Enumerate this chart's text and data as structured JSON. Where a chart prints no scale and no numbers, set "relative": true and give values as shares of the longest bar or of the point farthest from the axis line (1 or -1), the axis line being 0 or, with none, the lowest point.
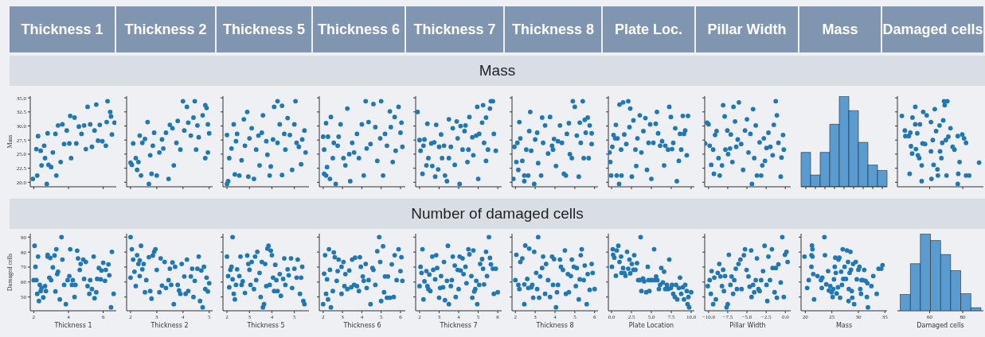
{
  "chart_data": [
    {
      "type": "other",
      "annotations": [
        "Thickness 1",
        "Thickness 2",
        "Thickness 5",
        "Thickness 6",
        "Thickness 7",
        "Thickness 8",
        "Plate Loc.",
        "Pillar Width",
        "Mass",
        "Damaged cells"
      ]
    },
    {
      "type": "other",
      "title": "Mass"
    },
    {
      "type": "scatter",
      "color": "#1f77b4",
      "marker": "circle",
      "ylabel": "Mass",
      "tick_labels": "y",
      "xlim": [
        1.8,
        6.75
      ],
      "xticks": [
        2,
        4,
        6
      ],
      "ylim": [
        19.2,
        35.3
      ],
      "yticks": [
        {
          "value": 20,
          "label": "20.0"
        },
        {
          "value": 22.5,
          "label": "22.5"
        },
        {
          "value": 25,
          "label": "25.0"
        },
        {
          "value": 27.5,
          "label": "27.5"
        },
        {
          "value": 30,
          "label": "30.0"
        },
        {
          "value": 32.5,
          "label": "32.5"
        },
        {
          "value": 35,
          "label": "35.0"
        }
      ],
      "x": [
        1.95,
        2.2,
        2.15,
        2.25,
        2.4,
        2.45,
        2.6,
        2.65,
        2.75,
        2.8,
        2.85,
        3.0,
        3.1,
        3.25,
        3.3,
        3.4,
        3.55,
        3.65,
        3.75,
        3.9,
        4.05,
        4.1,
        4.15,
        4.35,
        4.45,
        4.6,
        4.75,
        4.9,
        5.0,
        5.1,
        5.25,
        5.35,
        5.5,
        5.6,
        5.7,
        5.8,
        5.95,
        6.15,
        6.2,
        6.25,
        6.4,
        6.45,
        6.5,
        6.65
      ],
      "values": [
        20.6,
        21.2,
        25.9,
        28.2,
        25.6,
        23.0,
        26.5,
        24.3,
        19.7,
        28.7,
        23.1,
        22.7,
        25.3,
        28.6,
        21.2,
        30.1,
        23.6,
        30.3,
        26.8,
        29.2,
        26.9,
        31.8,
        24.3,
        31.5,
        26.9,
        29.9,
        28.6,
        30.1,
        25.9,
        33.4,
        30.3,
        26.3,
        29.2,
        33.8,
        27.4,
        30.2,
        27.3,
        26.5,
        30.7,
        34.4,
        32.5,
        31.7,
        28.5,
        30.6
      ]
    },
    {
      "type": "scatter",
      "color": "#1f77b4",
      "marker": "circle",
      "tick_labels": false,
      "xlim": [
        1.85,
        5.13
      ],
      "xticks": [
        2,
        3,
        4,
        5
      ],
      "ylim": [
        19.2,
        35.3
      ],
      "yticks": [
        20,
        22.5,
        25,
        27.5,
        30,
        32.5,
        35
      ],
      "x": [
        2.0,
        2.05,
        2.1,
        2.2,
        2.25,
        2.3,
        2.35,
        2.4,
        2.45,
        2.55,
        2.65,
        2.7,
        2.75,
        2.8,
        2.85,
        2.9,
        3.0,
        3.1,
        3.2,
        3.25,
        3.35,
        3.45,
        3.5,
        3.6,
        3.65,
        3.75,
        3.8,
        3.9,
        4.0,
        4.05,
        4.15,
        4.2,
        4.3,
        4.4,
        4.45,
        4.5,
        4.55,
        4.6,
        4.75,
        4.85,
        4.85,
        4.9,
        4.95,
        5.0,
        4.95
      ],
      "values": [
        23.5,
        23.1,
        26.9,
        24.3,
        22.2,
        23.6,
        28.3,
        21.2,
        27.0,
        27.7,
        30.7,
        19.7,
        24.8,
        21.5,
        26.5,
        28.8,
        21.2,
        25.3,
        27.6,
        26.0,
        28.8,
        20.6,
        30.2,
        29.6,
        23.0,
        27.0,
        30.9,
        25.8,
        34.4,
        29.2,
        33.4,
        30.6,
        28.3,
        31.5,
        34.4,
        25.8,
        30.1,
        28.0,
        31.9,
        33.7,
        24.3,
        33.2,
        30.3,
        28.7,
        25.3
      ]
    },
    {
      "type": "scatter",
      "color": "#1f77b4",
      "marker": "circle",
      "tick_labels": false,
      "xlim": [
        1.82,
        5.65
      ],
      "xticks": [
        2,
        3,
        4,
        5
      ],
      "ylim": [
        19.2,
        35.3
      ],
      "yticks": [
        20,
        22.5,
        25,
        27.5,
        30,
        32.5,
        35
      ],
      "x": [
        2.0,
        2.05,
        2.0,
        2.1,
        2.2,
        2.3,
        2.35,
        2.4,
        2.45,
        2.55,
        2.65,
        2.75,
        2.8,
        2.9,
        2.95,
        3.0,
        3.1,
        3.2,
        3.3,
        3.4,
        3.45,
        3.55,
        3.6,
        3.75,
        3.8,
        3.9,
        3.95,
        4.05,
        4.1,
        4.25,
        4.25,
        4.35,
        4.45,
        4.45,
        4.55,
        4.6,
        4.7,
        4.8,
        4.9,
        5.0,
        5.05,
        5.1,
        5.2,
        5.3,
        5.35,
        5.45,
        5.5
      ],
      "values": [
        19.7,
        20.2,
        28.4,
        24.3,
        26.0,
        30.3,
        21.4,
        27.3,
        28.6,
        21.2,
        23.9,
        31.2,
        26.5,
        32.5,
        21.0,
        27.8,
        29.6,
        20.6,
        25.8,
        28.3,
        23.0,
        28.8,
        31.9,
        27.3,
        24.9,
        21.2,
        22.8,
        27.6,
        33.4,
        34.4,
        27.0,
        30.3,
        21.3,
        33.6,
        28.6,
        25.8,
        31.4,
        28.4,
        22.2,
        30.3,
        34.4,
        27.0,
        26.3,
        23.2,
        27.6,
        29.2,
        25.3
      ]
    },
    {
      "type": "scatter",
      "color": "#1f77b4",
      "marker": "circle",
      "tick_labels": false,
      "xlim": [
        1.8,
        6.25
      ],
      "xticks": [
        2,
        3,
        4,
        5,
        6
      ],
      "ylim": [
        19.2,
        35.3
      ],
      "yticks": [
        20,
        22.5,
        25,
        27.5,
        30,
        32.5,
        35
      ],
      "x": [
        2.0,
        2.05,
        2.05,
        2.15,
        2.15,
        2.2,
        2.25,
        2.35,
        2.4,
        2.5,
        2.55,
        2.65,
        2.75,
        2.8,
        2.9,
        3.05,
        3.15,
        3.25,
        3.35,
        3.4,
        3.5,
        3.6,
        3.75,
        3.85,
        4.0,
        4.1,
        4.2,
        4.25,
        4.35,
        4.45,
        4.6,
        4.7,
        4.8,
        4.95,
        5.0,
        5.1,
        5.2,
        5.3,
        5.45,
        5.5,
        5.6,
        5.7,
        5.75,
        5.9,
        6.0,
        6.05,
        6.1
      ],
      "values": [
        28.1,
        25.8,
        21.5,
        21.2,
        30.5,
        22.7,
        28.1,
        20.6,
        31.6,
        24.3,
        27.0,
        19.7,
        26.5,
        28.1,
        30.3,
        24.3,
        23.0,
        33.1,
        25.0,
        20.2,
        27.0,
        25.3,
        28.6,
        24.3,
        30.3,
        21.2,
        34.4,
        26.0,
        30.7,
        26.8,
        33.9,
        29.8,
        23.8,
        27.8,
        34.4,
        21.2,
        28.6,
        26.5,
        32.6,
        29.8,
        23.6,
        31.6,
        25.6,
        33.4,
        28.8,
        30.6,
        26.3
      ]
    },
    {
      "type": "scatter",
      "color": "#1f77b4",
      "marker": "circle",
      "tick_labels": false,
      "xlim": [
        1.8,
        6.2
      ],
      "xticks": [
        2,
        3,
        4,
        5,
        6
      ],
      "ylim": [
        19.2,
        35.3
      ],
      "yticks": [
        20,
        22.5,
        25,
        27.5,
        30,
        32.5,
        35
      ],
      "x": [
        1.9,
        2.0,
        2.05,
        2.15,
        2.2,
        2.25,
        2.35,
        2.4,
        2.45,
        2.6,
        2.65,
        2.75,
        2.8,
        2.85,
        2.95,
        3.0,
        3.1,
        3.15,
        3.25,
        3.3,
        3.4,
        3.5,
        3.5,
        3.6,
        3.7,
        3.8,
        3.9,
        3.95,
        4.05,
        4.1,
        4.2,
        4.3,
        4.35,
        4.45,
        4.5,
        4.55,
        4.7,
        4.75,
        4.9,
        4.95,
        5.0,
        5.05,
        5.2,
        5.25,
        5.3,
        5.4,
        5.4,
        5.5,
        5.6,
        5.65,
        5.75,
        5.8,
        5.9
      ],
      "values": [
        32.5,
        27.5,
        25.6,
        21.5,
        26.5,
        27.6,
        23.0,
        30.4,
        24.3,
        26.9,
        22.9,
        27.1,
        21.0,
        30.2,
        22.3,
        26.3,
        28.5,
        24.3,
        26.5,
        21.2,
        20.2,
        24.3,
        31.2,
        26.3,
        29.6,
        23.1,
        30.8,
        27.8,
        19.7,
        30.0,
        25.8,
        29.1,
        30.1,
        23.6,
        25.8,
        31.6,
        28.0,
        24.8,
        28.3,
        33.4,
        20.6,
        28.6,
        30.6,
        33.7,
        27.0,
        23.8,
        31.5,
        25.8,
        33.1,
        34.4,
        34.4,
        28.6,
        25.6
      ]
    },
    {
      "type": "scatter",
      "color": "#1f77b4",
      "marker": "circle",
      "tick_labels": false,
      "xlim": [
        1.83,
        6.17
      ],
      "xticks": [
        2,
        3,
        4,
        5,
        6
      ],
      "ylim": [
        19.2,
        35.3
      ],
      "yticks": [
        20,
        22.5,
        25,
        27.5,
        30,
        32.5,
        35
      ],
      "x": [
        1.9,
        1.95,
        2.05,
        2.1,
        2.15,
        2.2,
        2.25,
        2.35,
        2.45,
        2.45,
        2.55,
        2.65,
        2.7,
        2.75,
        2.8,
        2.95,
        3.0,
        3.1,
        3.15,
        3.3,
        3.35,
        3.4,
        3.5,
        3.65,
        3.75,
        3.85,
        3.9,
        3.95,
        4.05,
        4.15,
        4.25,
        4.35,
        4.45,
        4.55,
        4.6,
        4.7,
        4.75,
        4.85,
        4.9,
        5.0,
        5.1,
        5.2,
        5.25,
        5.3,
        5.4,
        5.45,
        5.5,
        5.55,
        5.65,
        5.7,
        5.75,
        5.85,
        5.85
      ],
      "values": [
        20.6,
        26.3,
        23.6,
        27.0,
        22.2,
        30.7,
        27.8,
        23.8,
        21.2,
        20.2,
        25.8,
        21.2,
        29.1,
        32.5,
        25.6,
        19.7,
        27.6,
        28.8,
        23.4,
        21.2,
        31.5,
        27.0,
        30.1,
        25.1,
        31.6,
        26.5,
        25.8,
        27.7,
        22.9,
        27.3,
        30.1,
        27.0,
        21.5,
        21.2,
        28.6,
        30.5,
        25.0,
        24.3,
        34.4,
        33.4,
        28.3,
        21.0,
        30.6,
        27.0,
        34.4,
        24.3,
        31.1,
        28.8,
        31.5,
        24.3,
        30.1,
        26.8,
        28.7
      ]
    },
    {
      "type": "scatter",
      "color": "#1f77b4",
      "marker": "circle",
      "tick_labels": false,
      "xlim": [
        -0.4,
        10.4
      ],
      "xticks": [
        0,
        2.5,
        5,
        7.5,
        10
      ],
      "ylim": [
        19.2,
        35.3
      ],
      "yticks": [
        20,
        22.5,
        25,
        27.5,
        30,
        32.5,
        35
      ],
      "x": [
        -0.25,
        -0.15,
        -0.05,
        0.1,
        0.25,
        0.45,
        0.55,
        0.65,
        0.75,
        0.95,
        1.0,
        1.2,
        1.25,
        1.45,
        1.6,
        1.85,
        2.1,
        2.25,
        2.35,
        2.55,
        2.75,
        3.0,
        3.1,
        3.25,
        3.55,
        3.75,
        4.0,
        4.25,
        4.45,
        4.65,
        4.85,
        5.0,
        5.25,
        5.55,
        5.7,
        5.85,
        6.1,
        6.35,
        6.6,
        6.75,
        7.1,
        7.25,
        7.45,
        7.6,
        7.75,
        8.0,
        8.2,
        8.45,
        8.6,
        8.75,
        8.95,
        9.1,
        9.25,
        9.45,
        9.6
      ],
      "values": [
        25.3,
        23.6,
        21.2,
        26.3,
        28.4,
        27.8,
        30.2,
        21.2,
        27.8,
        19.7,
        33.8,
        25.8,
        21.2,
        34.2,
        28.5,
        26.8,
        34.4,
        29.8,
        33.1,
        21.0,
        31.0,
        25.8,
        22.9,
        27.8,
        31.9,
        25.3,
        29.1,
        31.4,
        22.2,
        27.0,
        30.3,
        20.6,
        27.0,
        30.4,
        32.5,
        28.7,
        26.5,
        27.3,
        23.0,
        26.5,
        25.8,
        33.4,
        31.6,
        25.9,
        27.0,
        29.6,
        20.2,
        23.8,
        28.6,
        25.8,
        31.8,
        28.6,
        29.2,
        24.8,
        31.8
      ]
    },
    {
      "type": "scatter",
      "color": "#1f77b4",
      "marker": "circle",
      "tick_labels": false,
      "xlim": [
        -10.5,
        0.7
      ],
      "xticks": [
        -10,
        -7.5,
        -5,
        -2.5,
        0
      ],
      "ylim": [
        19.2,
        35.3
      ],
      "yticks": [
        20,
        22.5,
        25,
        27.5,
        30,
        32.5,
        35
      ],
      "x": [
        -10.45,
        -10.2,
        -10.0,
        -9.85,
        -9.65,
        -9.4,
        -9.3,
        -9.15,
        -8.95,
        -8.7,
        -8.55,
        -8.25,
        -8.1,
        -7.9,
        -7.8,
        -7.55,
        -7.45,
        -7.2,
        -7.1,
        -6.9,
        -6.75,
        -6.55,
        -6.4,
        -6.2,
        -6.05,
        -5.75,
        -5.5,
        -5.25,
        -5.0,
        -4.8,
        -4.55,
        -4.35,
        -4.2,
        -4.05,
        -3.85,
        -3.7,
        -3.35,
        -3.15,
        -3.0,
        -2.8,
        -2.65,
        -2.45,
        -2.2,
        -1.95,
        -1.65,
        -1.5,
        -1.25,
        -1.1,
        -0.9,
        -0.6,
        -0.5,
        -0.3,
        -0.2
      ],
      "values": [
        26.9,
        30.6,
        30.3,
        26.5,
        23.1,
        25.8,
        21.5,
        28.4,
        29.1,
        24.3,
        21.2,
        23.0,
        33.7,
        31.7,
        25.8,
        29.2,
        25.0,
        26.0,
        28.5,
        23.6,
        33.4,
        30.8,
        26.3,
        27.6,
        34.2,
        26.8,
        22.2,
        29.2,
        31.2,
        25.3,
        28.6,
        19.7,
        33.0,
        24.3,
        30.1,
        21.2,
        27.1,
        21.2,
        23.0,
        27.8,
        23.8,
        26.1,
        28.8,
        26.3,
        24.8,
        30.2,
        34.4,
        31.9,
        27.0,
        21.0,
        24.4,
        28.4,
        25.8
      ]
    },
    {
      "type": "bar",
      "color": "#5a9bd0",
      "relative": true,
      "tick_labels": false,
      "categories": [
        null,
        null,
        null,
        null,
        null,
        null,
        null,
        null,
        null
      ],
      "values": [
        0.38,
        0.13,
        0.38,
        0.69,
        1,
        0.84,
        0.49,
        0.24,
        0.18
      ]
    },
    {
      "type": "scatter",
      "color": "#1f77b4",
      "marker": "circle",
      "tick_labels": false,
      "xlim": [
        40.5,
        92.5
      ],
      "xticks": [
        60,
        80
      ],
      "ylim": [
        19.2,
        35.3
      ],
      "yticks": [
        20,
        22.5,
        25,
        27.5,
        30,
        32.5,
        35
      ],
      "x": [
        43.2,
        45.0,
        45.3,
        47.4,
        47.9,
        48.3,
        48.7,
        49.4,
        49.6,
        51.3,
        51.3,
        51.7,
        52.5,
        52.9,
        53.7,
        54.1,
        55.2,
        55.2,
        55.7,
        56.1,
        57.2,
        58.2,
        60.8,
        60.8,
        61.1,
        61.9,
        62.4,
        63.1,
        63.9,
        64.7,
        65.0,
        66.0,
        66.3,
        67.1,
        67.6,
        68.2,
        68.7,
        69.1,
        69.8,
        70.2,
        70.7,
        71.3,
        72.6,
        73.9,
        75.0,
        77.0,
        77.0,
        77.3,
        78.1,
        79.7,
        80.8,
        82.0,
        82.0,
        83.9,
        89.9
      ],
      "values": [
        31.8,
        29.2,
        28.2,
        28.2,
        21.5,
        28.8,
        26.4,
        25.1,
        31.5,
        33.4,
        30.3,
        25.9,
        28.7,
        24.8,
        24.3,
        30.3,
        23.0,
        20.2,
        26.9,
        32.5,
        26.8,
        31.9,
        30.7,
        25.5,
        20.6,
        27.5,
        23.1,
        33.0,
        29.1,
        22.3,
        21.2,
        30.1,
        25.5,
        24.3,
        27.0,
        31.0,
        34.4,
        33.7,
        27.5,
        21.2,
        34.4,
        28.1,
        29.6,
        26.3,
        25.8,
        28.2,
        19.7,
        21.5,
        23.6,
        28.5,
        27.8,
        27.0,
        21.2,
        21.2,
        23.5
      ]
    },
    {
      "type": "other",
      "title": "Number of damaged cells"
    },
    {
      "type": "scatter",
      "color": "#1f77b4",
      "marker": "circle",
      "xlabel": "Thickness 1",
      "ylabel": "Damaged cells",
      "xlim": [
        1.8,
        6.75
      ],
      "xticks": [
        2,
        4,
        6
      ],
      "ylim": [
        40.8,
        92.3
      ],
      "yticks": [
        50,
        60,
        70,
        80,
        90
      ],
      "x": [
        2.05,
        2.1,
        2.0,
        2.15,
        2.2,
        2.25,
        2.3,
        2.35,
        2.4,
        2.45,
        2.55,
        2.65,
        2.7,
        2.8,
        2.8,
        2.9,
        2.95,
        3.0,
        3.1,
        3.2,
        3.25,
        3.3,
        3.35,
        3.4,
        3.5,
        3.6,
        3.65,
        3.75,
        3.85,
        3.95,
        4.05,
        4.1,
        4.2,
        4.25,
        4.35,
        4.4,
        4.5,
        4.55,
        4.65,
        4.7,
        4.85,
        4.9,
        5.0,
        5.1,
        5.2,
        5.25,
        5.35,
        5.45,
        5.5,
        5.6,
        5.65,
        5.75,
        5.85,
        5.9,
        6.0,
        6.1,
        6.15,
        6.3,
        6.35,
        6.45,
        6.5,
        6.6
      ],
      "values": [
        84.2,
        70.2,
        61.3,
        61.3,
        52.1,
        77.0,
        47.3,
        58.1,
        54.0,
        56.0,
        49.7,
        57.3,
        54.0,
        77.0,
        78.2,
        62.9,
        76.1,
        61.3,
        69.8,
        77.7,
        53.7,
        81.9,
        65.3,
        66.9,
        48.4,
        90.0,
        75.0,
        58.1,
        45.2,
        61.3,
        64.0,
        81.9,
        58.1,
        61.3,
        50.0,
        58.1,
        81.0,
        75.8,
        68.1,
        72.1,
        75.0,
        62.1,
        73.4,
        57.3,
        52.1,
        61.3,
        55.3,
        77.0,
        49.2,
        53.2,
        62.1,
        69.4,
        61.8,
        67.7,
        72.9,
        60.8,
        68.1,
        71.8,
        64.5,
        43.1,
        80.2,
        52.1
      ]
    },
    {
      "type": "scatter",
      "color": "#1f77b4",
      "marker": "circle",
      "xlabel": "Thickness 2",
      "tick_labels": "x",
      "xlim": [
        1.85,
        5.13
      ],
      "xticks": [
        2,
        3,
        4,
        5
      ],
      "ylim": [
        40.8,
        92.3
      ],
      "yticks": [
        50,
        60,
        70,
        80,
        90
      ],
      "x": [
        2.0,
        2.0,
        2.05,
        2.1,
        2.15,
        2.2,
        2.25,
        2.3,
        2.35,
        2.35,
        2.4,
        2.45,
        2.5,
        2.55,
        2.6,
        2.7,
        2.75,
        2.8,
        2.85,
        2.9,
        2.95,
        3.0,
        3.1,
        3.15,
        3.2,
        3.3,
        3.35,
        3.45,
        3.5,
        3.55,
        3.6,
        3.65,
        3.7,
        3.8,
        3.85,
        3.9,
        3.95,
        4.05,
        4.1,
        4.15,
        4.2,
        4.3,
        4.35,
        4.4,
        4.45,
        4.55,
        4.6,
        4.65,
        4.7,
        4.75,
        4.8,
        4.85,
        4.9,
        4.95,
        5.0
      ],
      "values": [
        90.0,
        62.9,
        81.9,
        75.0,
        66.9,
        57.3,
        77.9,
        72.1,
        74.5,
        64.0,
        84.2,
        68.5,
        72.1,
        53.2,
        61.3,
        76.6,
        54.0,
        48.9,
        77.7,
        80.2,
        81.9,
        68.1,
        53.2,
        75.8,
        57.6,
        73.4,
        56.0,
        61.3,
        68.9,
        58.1,
        73.1,
        45.2,
        70.2,
        58.1,
        54.4,
        52.1,
        72.1,
        63.7,
        52.1,
        75.0,
        54.0,
        63.7,
        68.9,
        50.0,
        60.8,
        68.9,
        77.0,
        47.3,
        67.7,
        43.1,
        70.2,
        55.3,
        62.9,
        53.7,
        59.2
      ]
    },
    {
      "type": "scatter",
      "color": "#1f77b4",
      "marker": "circle",
      "xlabel": "Thickness 5",
      "tick_labels": "x",
      "xlim": [
        1.82,
        5.65
      ],
      "xticks": [
        2,
        3,
        4,
        5
      ],
      "ylim": [
        40.8,
        92.3
      ],
      "yticks": [
        50,
        60,
        70,
        80,
        90
      ],
      "x": [
        2.0,
        2.05,
        2.1,
        2.15,
        2.2,
        2.25,
        2.25,
        2.3,
        2.35,
        2.4,
        2.45,
        2.55,
        2.6,
        2.65,
        2.7,
        2.8,
        2.9,
        2.95,
        3.0,
        3.05,
        3.1,
        3.2,
        3.25,
        3.3,
        3.35,
        3.45,
        3.5,
        3.55,
        3.6,
        3.65,
        3.7,
        3.75,
        3.8,
        3.85,
        3.9,
        3.95,
        4.0,
        4.05,
        4.1,
        4.15,
        4.2,
        4.25,
        4.35,
        4.4,
        4.5,
        4.55,
        4.6,
        4.7,
        4.75,
        4.85,
        4.9,
        5.0,
        5.1,
        5.15,
        5.25,
        5.3,
        5.35,
        5.4,
        5.45
      ],
      "values": [
        77.0,
        64.0,
        56.5,
        68.2,
        70.2,
        61.8,
        90.0,
        52.1,
        48.4,
        58.1,
        68.5,
        64.0,
        77.0,
        58.1,
        60.5,
        52.7,
        77.7,
        72.1,
        68.2,
        58.1,
        73.4,
        55.3,
        77.0,
        61.3,
        80.2,
        66.1,
        50.0,
        73.4,
        43.1,
        45.2,
        72.1,
        57.3,
        82.3,
        84.2,
        58.1,
        81.0,
        77.9,
        62.9,
        54.0,
        71.5,
        61.3,
        54.0,
        65.3,
        50.8,
        62.1,
        75.8,
        58.1,
        68.5,
        64.5,
        75.8,
        56.0,
        68.9,
        62.9,
        75.0,
        52.1,
        62.9,
        70.2,
        47.3,
        45.2
      ]
    },
    {
      "type": "scatter",
      "color": "#1f77b4",
      "marker": "circle",
      "xlabel": "Thickness 6",
      "tick_labels": "x",
      "xlim": [
        1.8,
        6.25
      ],
      "xticks": [
        2,
        3,
        4,
        5,
        6
      ],
      "ylim": [
        40.8,
        92.3
      ],
      "yticks": [
        50,
        60,
        70,
        80,
        90
      ],
      "x": [
        2.0,
        2.05,
        2.1,
        2.15,
        2.2,
        2.25,
        2.3,
        2.35,
        2.4,
        2.5,
        2.55,
        2.6,
        2.7,
        2.75,
        2.8,
        2.95,
        2.95,
        3.05,
        3.1,
        3.15,
        3.25,
        3.35,
        3.45,
        3.5,
        3.6,
        3.65,
        3.75,
        3.85,
        3.9,
        3.95,
        4.05,
        4.1,
        4.2,
        4.25,
        4.35,
        4.45,
        4.55,
        4.6,
        4.7,
        4.8,
        4.9,
        4.95,
        5.0,
        5.1,
        5.15,
        5.2,
        5.3,
        5.35,
        5.45,
        5.55,
        5.65,
        5.7,
        5.8,
        5.9,
        6.0,
        6.05,
        6.1
      ],
      "values": [
        45.2,
        65.6,
        77.9,
        52.1,
        61.8,
        48.4,
        81.9,
        68.2,
        43.1,
        54.0,
        79.8,
        76.6,
        60.8,
        67.3,
        75.0,
        70.2,
        52.1,
        73.4,
        57.3,
        65.3,
        55.3,
        67.7,
        56.5,
        75.0,
        58.1,
        76.3,
        57.3,
        54.0,
        76.6,
        70.2,
        63.7,
        60.8,
        72.1,
        56.0,
        61.3,
        45.2,
        69.4,
        68.1,
        58.1,
        80.6,
        90.0,
        73.4,
        47.3,
        83.9,
        53.2,
        63.7,
        49.5,
        63.7,
        49.5,
        71.8,
        50.0,
        77.9,
        61.3,
        81.9,
        67.3,
        76.6,
        60.8
      ]
    },
    {
      "type": "scatter",
      "color": "#1f77b4",
      "marker": "circle",
      "xlabel": "Thickness 7",
      "tick_labels": "x",
      "xlim": [
        1.8,
        6.2
      ],
      "xticks": [
        2,
        3,
        4,
        5,
        6
      ],
      "ylim": [
        40.8,
        92.3
      ],
      "yticks": [
        50,
        60,
        70,
        80,
        90
      ],
      "x": [
        2.0,
        2.05,
        2.1,
        2.15,
        2.2,
        2.25,
        2.35,
        2.4,
        2.45,
        2.5,
        2.55,
        2.65,
        2.7,
        2.8,
        2.85,
        2.9,
        3.0,
        3.05,
        3.1,
        3.2,
        3.25,
        3.3,
        3.4,
        3.45,
        3.5,
        3.6,
        3.65,
        3.7,
        3.8,
        3.85,
        3.95,
        4.0,
        4.05,
        4.1,
        4.2,
        4.25,
        4.35,
        4.4,
        4.5,
        4.55,
        4.65,
        4.7,
        4.75,
        4.8,
        4.85,
        4.9,
        4.95,
        5.05,
        5.1,
        5.2,
        5.25,
        5.3,
        5.4,
        5.45,
        5.55,
        5.6,
        5.65,
        5.75,
        5.8,
        5.9,
        6.0
      ],
      "values": [
        57.3,
        70.2,
        66.1,
        81.9,
        48.4,
        60.5,
        67.3,
        57.3,
        55.3,
        65.0,
        54.0,
        77.0,
        68.2,
        61.8,
        77.9,
        69.4,
        49.5,
        56.0,
        64.0,
        56.5,
        73.4,
        47.9,
        60.8,
        84.2,
        45.2,
        57.3,
        61.3,
        77.0,
        71.0,
        50.0,
        68.1,
        55.3,
        77.0,
        67.7,
        75.8,
        65.3,
        70.2,
        59.2,
        81.9,
        78.5,
        64.0,
        49.5,
        81.1,
        53.7,
        55.3,
        60.8,
        45.2,
        58.1,
        72.1,
        75.3,
        68.9,
        58.4,
        80.2,
        64.0,
        90.0,
        76.1,
        71.8,
        68.9,
        52.1,
        68.9,
        53.2
      ]
    },
    {
      "type": "scatter",
      "color": "#1f77b4",
      "marker": "circle",
      "xlabel": "Thickness 8",
      "tick_labels": "x",
      "xlim": [
        1.83,
        6.17
      ],
      "xticks": [
        2,
        3,
        4,
        5,
        6
      ],
      "ylim": [
        40.8,
        92.3
      ],
      "yticks": [
        50,
        60,
        70,
        80,
        90
      ],
      "x": [
        2.0,
        2.05,
        2.15,
        2.2,
        2.25,
        2.35,
        2.45,
        2.45,
        2.5,
        2.6,
        2.65,
        2.7,
        2.8,
        2.85,
        2.9,
        2.95,
        3.05,
        3.1,
        3.15,
        3.2,
        3.25,
        3.35,
        3.4,
        3.5,
        3.55,
        3.65,
        3.75,
        3.85,
        3.9,
        3.95,
        4.05,
        4.1,
        4.15,
        4.25,
        4.3,
        4.4,
        4.5,
        4.55,
        4.65,
        4.7,
        4.8,
        4.85,
        4.95,
        5.05,
        5.1,
        5.2,
        5.25,
        5.3,
        5.35,
        5.45,
        5.5,
        5.6,
        5.65,
        5.75,
        5.85,
        5.9,
        6.0
      ],
      "values": [
        61.3,
        78.2,
        58.1,
        55.3,
        73.4,
        75.8,
        58.4,
        45.2,
        84.4,
        62.1,
        56.0,
        82.3,
        56.5,
        58.1,
        49.5,
        80.2,
        66.1,
        55.3,
        90.0,
        49.5,
        63.7,
        69.4,
        77.0,
        52.1,
        72.1,
        61.3,
        50.0,
        77.0,
        58.1,
        75.3,
        43.1,
        53.2,
        58.1,
        75.0,
        70.2,
        68.1,
        81.1,
        52.1,
        65.3,
        53.2,
        64.0,
        75.0,
        70.2,
        57.3,
        69.4,
        48.4,
        61.8,
        77.9,
        81.9,
        61.3,
        71.0,
        45.2,
        65.3,
        54.8,
        72.1,
        66.1,
        55.3
      ]
    },
    {
      "type": "scatter",
      "color": "#1f77b4",
      "marker": "circle",
      "xlabel": "Plate Location",
      "tick_labels": "x",
      "xlim": [
        -0.4,
        10.4
      ],
      "xticks": [
        {
          "value": 0,
          "label": "0.0"
        },
        {
          "value": 2.5,
          "label": "2.5"
        },
        {
          "value": 5,
          "label": "5.0"
        },
        {
          "value": 7.5,
          "label": "7.5"
        },
        {
          "value": 10,
          "label": "10.0"
        }
      ],
      "ylim": [
        40.8,
        92.3
      ],
      "yticks": [
        50,
        60,
        70,
        80,
        90
      ],
      "x": [
        0.05,
        0.15,
        0.2,
        0.35,
        0.55,
        0.65,
        0.85,
        1.0,
        1.2,
        1.25,
        1.45,
        1.6,
        1.75,
        1.95,
        2.1,
        2.25,
        2.35,
        2.55,
        2.75,
        2.85,
        3.0,
        3.2,
        3.35,
        3.55,
        3.65,
        3.75,
        3.95,
        4.1,
        4.35,
        4.55,
        4.65,
        4.75,
        4.95,
        5.1,
        5.35,
        5.45,
        5.6,
        5.75,
        5.95,
        6.1,
        6.25,
        6.45,
        6.6,
        6.75,
        6.95,
        7.1,
        7.25,
        7.45,
        7.6,
        7.75,
        7.95,
        8.1,
        8.25,
        8.45,
        8.6,
        8.75,
        8.95,
        9.1,
        9.25,
        9.45,
        9.55,
        9.65,
        9.75,
        10.0
      ],
      "values": [
        70.2,
        81.9,
        78.2,
        76.3,
        64.2,
        81.1,
        84.2,
        73.4,
        77.0,
        66.1,
        69.4,
        66.1,
        64.2,
        80.2,
        68.9,
        75.0,
        65.8,
        72.1,
        68.2,
        77.9,
        68.2,
        72.6,
        61.3,
        61.3,
        90.0,
        54.0,
        62.4,
        60.5,
        53.2,
        70.2,
        61.3,
        54.0,
        61.3,
        61.3,
        81.9,
        61.3,
        63.7,
        61.3,
        55.3,
        58.1,
        69.4,
        59.7,
        66.9,
        55.3,
        58.1,
        55.3,
        75.0,
        56.0,
        58.1,
        52.1,
        50.0,
        58.1,
        48.4,
        56.0,
        62.9,
        52.1,
        56.5,
        48.4,
        58.1,
        54.0,
        45.2,
        50.0,
        43.1,
        53.2
      ]
    },
    {
      "type": "scatter",
      "color": "#1f77b4",
      "marker": "circle",
      "xlabel": "Pillar Width",
      "tick_labels": "x",
      "xlim": [
        -10.5,
        0.7
      ],
      "xticks": [
        {
          "value": -10,
          "label": "−10.0"
        },
        {
          "value": -7.5,
          "label": "−7.5"
        },
        {
          "value": -5,
          "label": "−5.0"
        },
        {
          "value": -2.5,
          "label": "−2.5"
        },
        {
          "value": 0,
          "label": "0.0"
        }
      ],
      "ylim": [
        40.8,
        92.3
      ],
      "yticks": [
        50,
        60,
        70,
        80,
        90
      ],
      "x": [
        -10.1,
        -9.85,
        -9.7,
        -9.6,
        -9.4,
        -9.25,
        -9.05,
        -8.8,
        -8.6,
        -8.45,
        -8.25,
        -8.1,
        -8.0,
        -7.85,
        -7.65,
        -7.5,
        -7.35,
        -7.15,
        -7.0,
        -6.8,
        -6.65,
        -6.45,
        -6.3,
        -6.1,
        -5.85,
        -5.7,
        -5.4,
        -5.25,
        -5.05,
        -4.8,
        -4.65,
        -4.45,
        -4.4,
        -4.2,
        -4.05,
        -3.85,
        -3.7,
        -3.5,
        -3.35,
        -3.15,
        -2.9,
        -2.7,
        -2.45,
        -2.35,
        -2.2,
        -2.0,
        -1.75,
        -1.65,
        -1.4,
        -1.25,
        -1.1,
        -0.9,
        -0.6,
        -0.4,
        -0.2,
        -0.05,
        0.15,
        0.3
      ],
      "values": [
        57.3,
        61.3,
        52.1,
        67.3,
        45.2,
        62.9,
        48.4,
        66.1,
        72.1,
        63.7,
        57.3,
        68.2,
        54.0,
        64.0,
        43.1,
        45.2,
        78.2,
        58.1,
        63.7,
        52.1,
        61.3,
        68.9,
        55.3,
        72.1,
        75.0,
        55.3,
        77.9,
        81.9,
        68.1,
        63.7,
        56.9,
        81.1,
        50.0,
        58.1,
        53.2,
        61.3,
        75.8,
        55.3,
        54.0,
        61.3,
        67.3,
        84.2,
        58.1,
        47.3,
        77.0,
        61.3,
        81.9,
        69.4,
        53.2,
        69.4,
        49.5,
        71.8,
        59.7,
        90.0,
        50.0,
        78.2,
        80.2,
        73.4
      ]
    },
    {
      "type": "scatter",
      "color": "#1f77b4",
      "marker": "circle",
      "xlabel": "Mass",
      "tick_labels": "x",
      "xlim": [
        19.2,
        35.4
      ],
      "xticks": [
        20,
        25,
        30,
        35
      ],
      "ylim": [
        40.8,
        92.3
      ],
      "yticks": [
        50,
        60,
        70,
        80,
        90
      ],
      "x": [
        19.85,
        20.35,
        20.65,
        21.15,
        21.15,
        21.25,
        21.35,
        21.35,
        21.5,
        21.65,
        22.3,
        22.95,
        23.2,
        23.1,
        23.6,
        23.7,
        23.95,
        24.3,
        24.45,
        24.7,
        24.95,
        25.15,
        25.25,
        25.4,
        25.55,
        25.65,
        25.75,
        25.9,
        26.15,
        26.25,
        26.4,
        26.55,
        26.75,
        26.9,
        27.05,
        27.15,
        27.4,
        27.65,
        27.85,
        28.05,
        28.15,
        28.2,
        28.35,
        28.5,
        28.6,
        28.75,
        28.85,
        29.0,
        29.2,
        29.5,
        29.7,
        30.0,
        30.2,
        30.35,
        30.5,
        30.6,
        30.85,
        31.1,
        31.35,
        31.6,
        31.7,
        31.8,
        32.45,
        32.8,
        33.45,
        33.8,
        34.3,
        34.55
      ],
      "values": [
        77.0,
        56.0,
        61.3,
        77.9,
        70.2,
        84.4,
        81.9,
        77.0,
        65.3,
        48.4,
        64.0,
        61.3,
        62.9,
        56.0,
        90.0,
        77.9,
        58.5,
        67.3,
        54.4,
        57.3,
        53.2,
        50.0,
        55.3,
        61.8,
        70.2,
        76.3,
        66.1,
        52.4,
        56.5,
        75.0,
        76.3,
        49.5,
        66.9,
        58.1,
        81.9,
        62.1,
        70.2,
        62.1,
        81.1,
        73.4,
        47.3,
        55.3,
        66.1,
        80.2,
        68.2,
        54.0,
        49.5,
        72.1,
        45.2,
        73.4,
        61.8,
        68.2,
        70.2,
        55.3,
        52.1,
        61.3,
        61.3,
        68.1,
        60.8,
        50.0,
        59.2,
        43.1,
        57.3,
        64.0,
        52.1,
        68.9,
        68.9,
        71.3
      ]
    },
    {
      "type": "bar",
      "color": "#5a9bd0",
      "relative": true,
      "xlabel": "Damaged cells",
      "tick_labels": "x",
      "xlim": [
        40.5,
        92.5
      ],
      "xticks": [
        60,
        80
      ],
      "x": [
        45.25,
        51.35,
        57.45,
        63.55,
        69.65,
        75.75,
        81.85,
        87.95
      ],
      "values": [
        0.21,
        0.61,
        1,
        0.91,
        0.73,
        0.52,
        0.22,
        0.04
      ]
    }
  ]
}
